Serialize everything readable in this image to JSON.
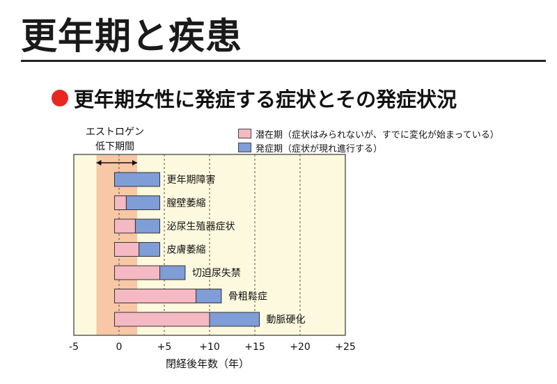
{
  "header": {
    "title": "更年期と疾患",
    "subtitle": "更年期女性に発症する症状とその発症状況"
  },
  "colors": {
    "latent": "#f4b9c3",
    "onset": "#7f9dd6",
    "panel": "#fdf9de",
    "band": "#f8c7a6",
    "bullet": "#e8271f"
  },
  "annotation": {
    "line1": "エストロゲン",
    "line2": "低下期間"
  },
  "legend": {
    "latent": "潜在期（症状はみられないが、すでに変化が始まっている）",
    "onset": "発症期（症状が現れ進行する）"
  },
  "chart_data": {
    "type": "bar",
    "orientation": "horizontal-stacked",
    "xlabel": "閉経後年数（年）",
    "xlim": [
      -5,
      25
    ],
    "xticks": [
      "-5",
      "0",
      "+5",
      "+10",
      "+15",
      "+20",
      "+25"
    ],
    "estrogen_decline_range": [
      -2.5,
      2
    ],
    "categories": [
      "更年期障害",
      "膣壁萎縮",
      "泌尿生殖器症状",
      "皮膚萎縮",
      "切迫尿失禁",
      "骨粗鬆症",
      "動脈硬化"
    ],
    "series": [
      {
        "name": "潜在期",
        "start": [
          null,
          -0.5,
          -0.5,
          -0.5,
          -0.5,
          -0.5,
          -0.5
        ],
        "end": [
          null,
          0.8,
          1.8,
          2.2,
          4.5,
          8.5,
          10
        ]
      },
      {
        "name": "発症期",
        "start": [
          -0.5,
          0.8,
          1.8,
          2.2,
          4.5,
          8.5,
          10
        ],
        "end": [
          4.5,
          4.5,
          4.5,
          4.5,
          7.3,
          11.3,
          15.5
        ]
      }
    ],
    "grid": "dashed vertical at each tick"
  }
}
